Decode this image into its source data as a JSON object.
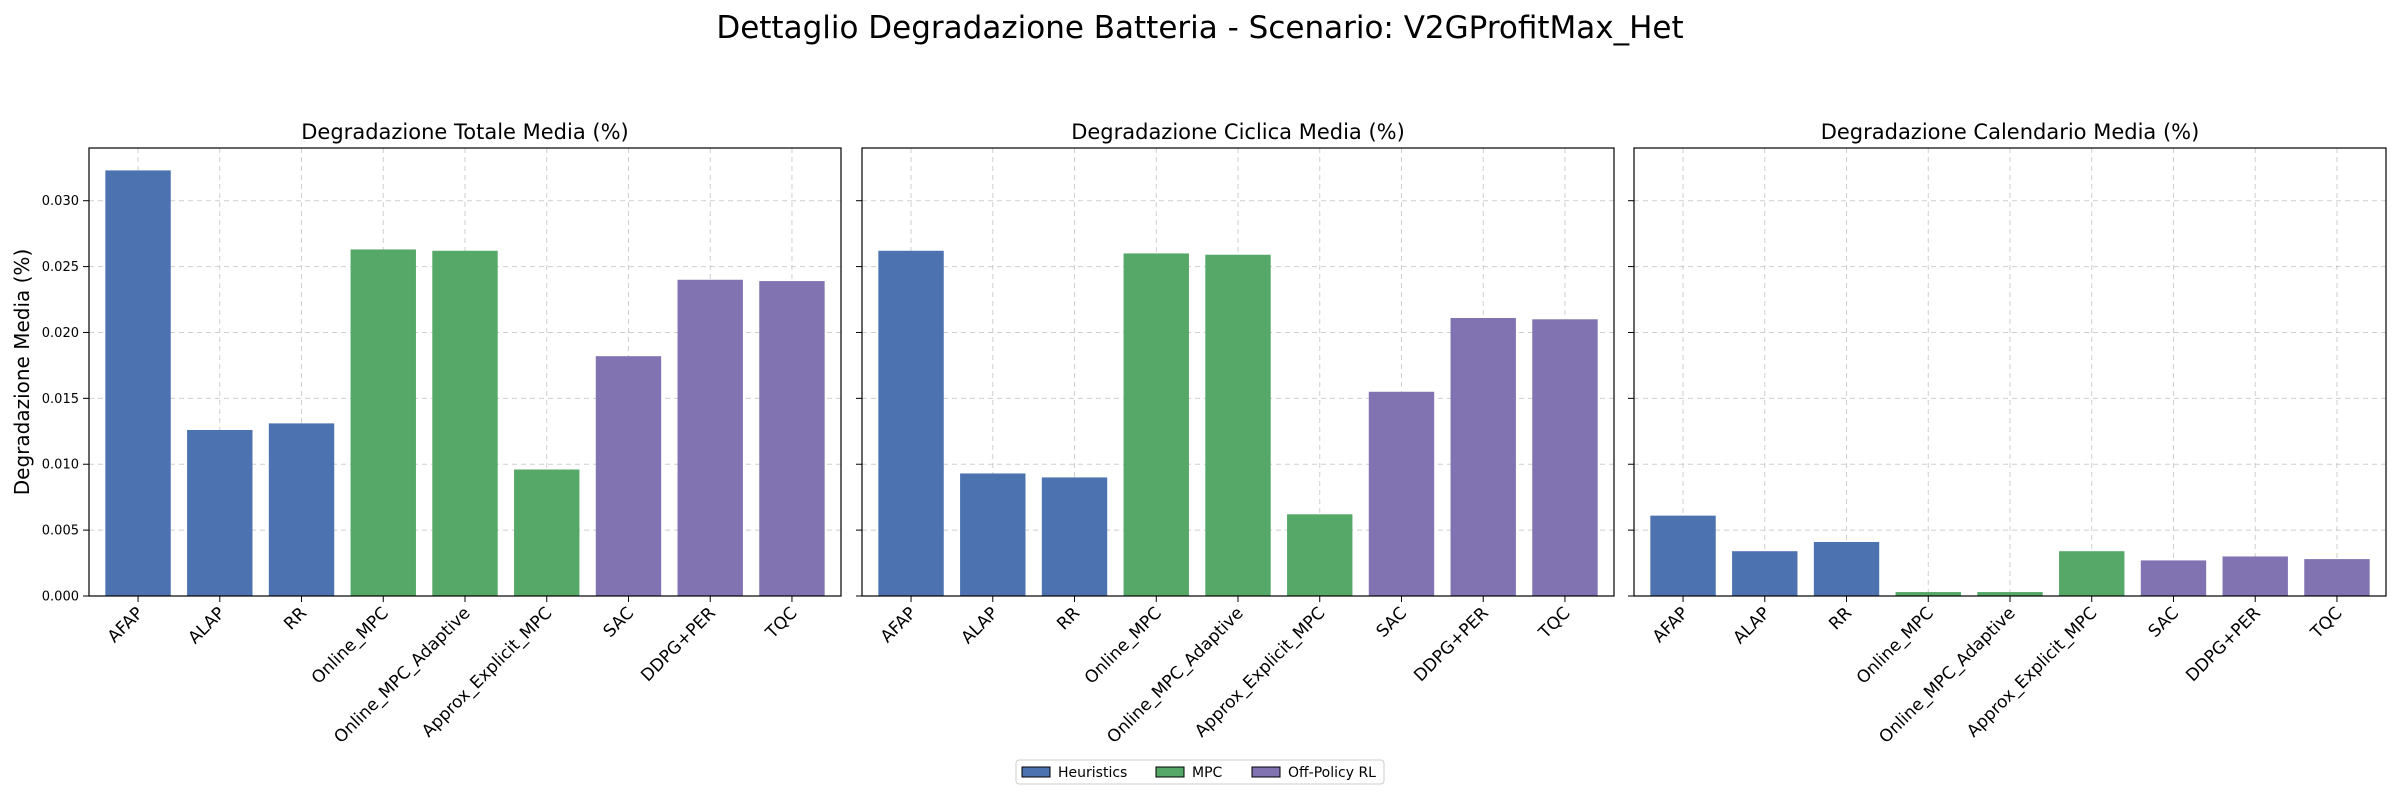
{
  "suptitle": "Dettaglio Degradazione Batteria - Scenario: V2GProfitMax_Het",
  "ylabel": "Degradazione Media (%)",
  "legend": {
    "placement": "bottom-center",
    "entries": [
      {
        "name": "Heuristics",
        "color": "#4c72b0"
      },
      {
        "name": "MPC",
        "color": "#55a868"
      },
      {
        "name": "Off-Policy RL",
        "color": "#8172b2"
      }
    ]
  },
  "chart_data": [
    {
      "type": "bar",
      "title": "Degradazione Totale Media (%)",
      "categories": [
        "AFAP",
        "ALAP",
        "RR",
        "Online_MPC",
        "Online_MPC_Adaptive",
        "Approx_Explicit_MPC",
        "SAC",
        "DDPG+PER",
        "TQC"
      ],
      "groups": [
        "Heuristics",
        "Heuristics",
        "Heuristics",
        "MPC",
        "MPC",
        "MPC",
        "Off-Policy RL",
        "Off-Policy RL",
        "Off-Policy RL"
      ],
      "values": [
        0.0323,
        0.0126,
        0.0131,
        0.0263,
        0.0262,
        0.0096,
        0.0182,
        0.024,
        0.0239
      ],
      "ylim": [
        0,
        0.034
      ],
      "yticks": [
        "0.000",
        "0.005",
        "0.010",
        "0.015",
        "0.020",
        "0.025",
        "0.030"
      ],
      "grid": true
    },
    {
      "type": "bar",
      "title": "Degradazione Ciclica Media (%)",
      "categories": [
        "AFAP",
        "ALAP",
        "RR",
        "Online_MPC",
        "Online_MPC_Adaptive",
        "Approx_Explicit_MPC",
        "SAC",
        "DDPG+PER",
        "TQC"
      ],
      "groups": [
        "Heuristics",
        "Heuristics",
        "Heuristics",
        "MPC",
        "MPC",
        "MPC",
        "Off-Policy RL",
        "Off-Policy RL",
        "Off-Policy RL"
      ],
      "values": [
        0.0262,
        0.0093,
        0.009,
        0.026,
        0.0259,
        0.0062,
        0.0155,
        0.0211,
        0.021
      ],
      "ylim": [
        0,
        0.034
      ],
      "grid": true
    },
    {
      "type": "bar",
      "title": "Degradazione Calendario Media (%)",
      "categories": [
        "AFAP",
        "ALAP",
        "RR",
        "Online_MPC",
        "Online_MPC_Adaptive",
        "Approx_Explicit_MPC",
        "SAC",
        "DDPG+PER",
        "TQC"
      ],
      "groups": [
        "Heuristics",
        "Heuristics",
        "Heuristics",
        "MPC",
        "MPC",
        "MPC",
        "Off-Policy RL",
        "Off-Policy RL",
        "Off-Policy RL"
      ],
      "values": [
        0.0061,
        0.0034,
        0.0041,
        0.0003,
        0.0003,
        0.0034,
        0.0027,
        0.003,
        0.0028
      ],
      "ylim": [
        0,
        0.034
      ],
      "grid": true
    }
  ]
}
